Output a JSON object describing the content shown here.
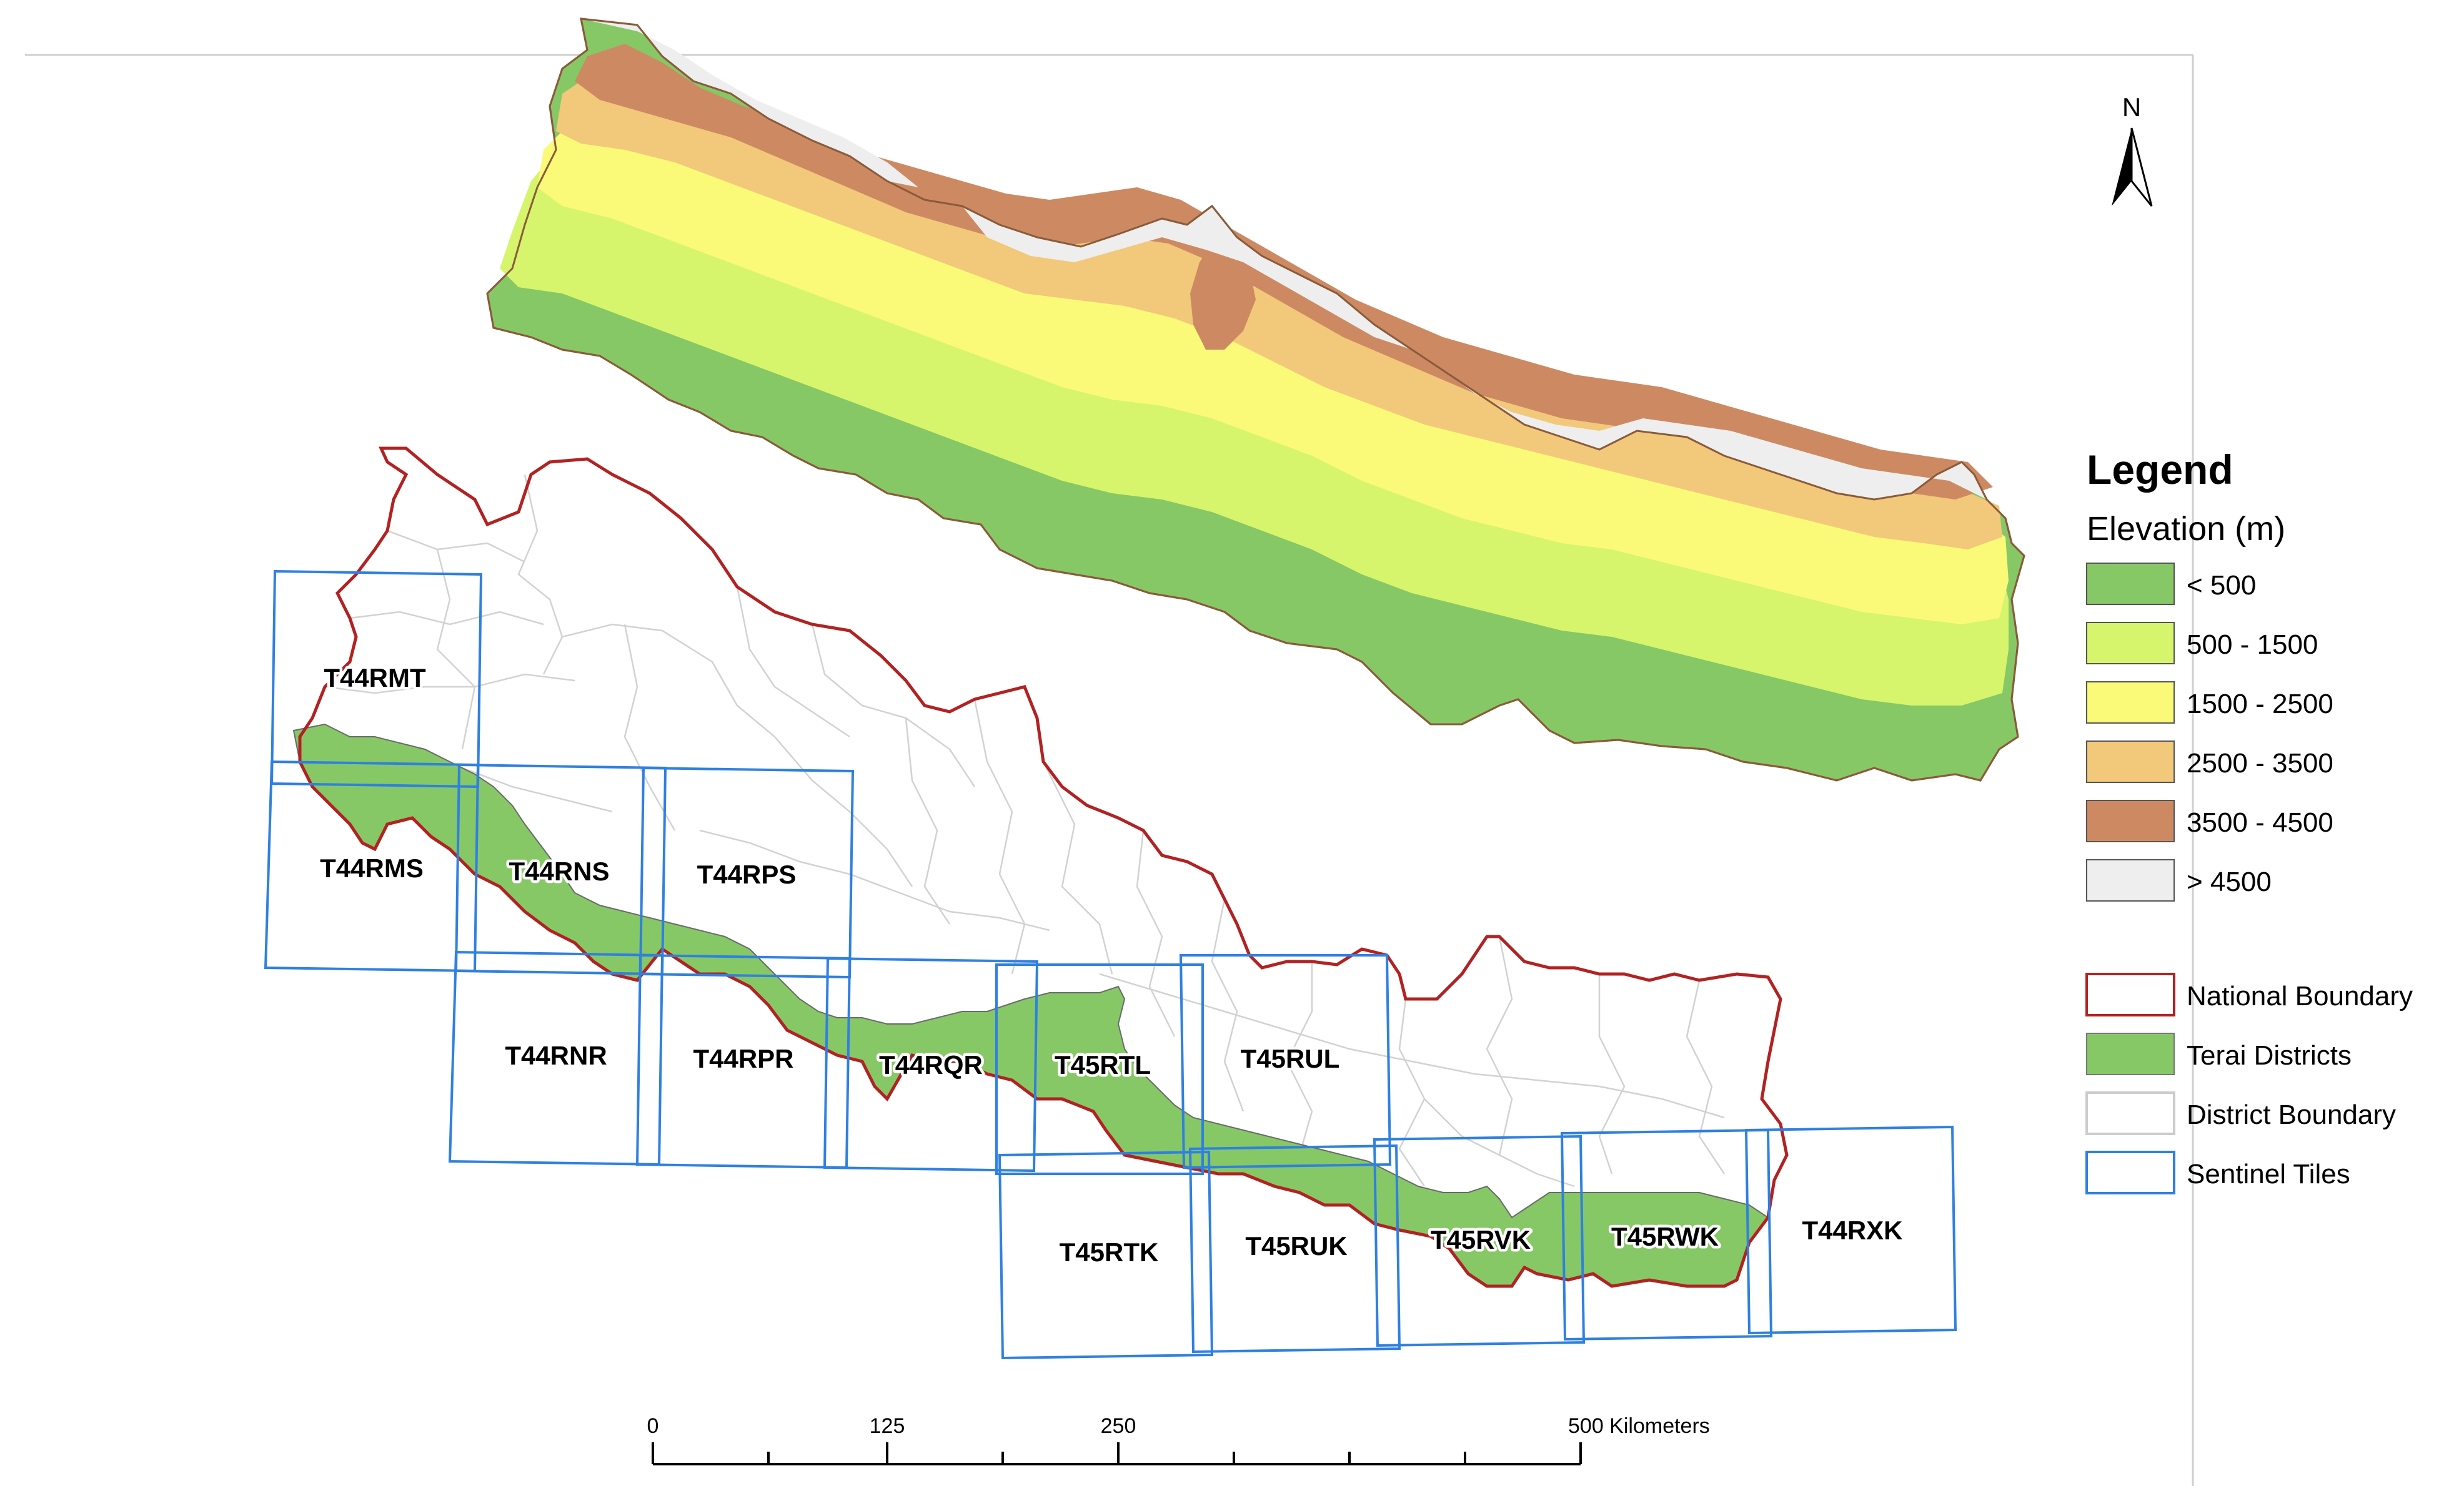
{
  "legend": {
    "title": "Legend",
    "elevation_title": "Elevation (m)",
    "elevation_classes": [
      {
        "label": "< 500",
        "color": "#86c866"
      },
      {
        "label": "500 - 1500",
        "color": "#d6f56c"
      },
      {
        "label": "1500 - 2500",
        "color": "#fafa78"
      },
      {
        "label": "2500 - 3500",
        "color": "#f2c87a"
      },
      {
        "label": "3500 - 4500",
        "color": "#cd8a62"
      },
      {
        "label": "> 4500",
        "color": "#eeeeee"
      }
    ],
    "layers": [
      {
        "label": "National Boundary",
        "color": "#b22222",
        "style": "outline"
      },
      {
        "label": "Terai Districts",
        "color": "#86c866",
        "style": "fill"
      },
      {
        "label": "District Boundary",
        "color": "#cccccc",
        "style": "outline"
      },
      {
        "label": "Sentinel Tiles",
        "color": "#2f80e0",
        "style": "outline"
      }
    ]
  },
  "north_arrow": {
    "label": "N",
    "icon": "north-arrow-icon"
  },
  "scale_bar": {
    "labels": [
      "0",
      "125",
      "250",
      "500 Kilometers"
    ]
  },
  "tiles": [
    "T44RMT",
    "T44RMS",
    "T44RNS",
    "T44RPS",
    "T44RNR",
    "T44RPR",
    "T44RQR",
    "T45RTL",
    "T45RUL",
    "T45RTK",
    "T45RUK",
    "T45RVK",
    "T45RWK",
    "T44RXK"
  ]
}
